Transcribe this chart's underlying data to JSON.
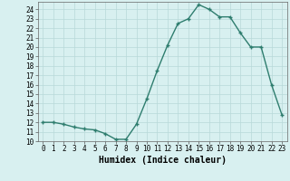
{
  "x": [
    0,
    1,
    2,
    3,
    4,
    5,
    6,
    7,
    8,
    9,
    10,
    11,
    12,
    13,
    14,
    15,
    16,
    17,
    18,
    19,
    20,
    21,
    22,
    23
  ],
  "y": [
    12,
    12,
    11.8,
    11.5,
    11.3,
    11.2,
    10.8,
    10.2,
    10.2,
    11.8,
    14.5,
    17.5,
    20.2,
    22.5,
    23,
    24.5,
    24,
    23.2,
    23.2,
    21.5,
    20,
    20,
    16,
    12.8
  ],
  "line_color": "#2e7d6e",
  "marker": "+",
  "marker_size": 3,
  "bg_color": "#d8f0f0",
  "grid_color": "#b8d8d8",
  "xlabel": "Humidex (Indice chaleur)",
  "xlim": [
    -0.5,
    23.5
  ],
  "ylim": [
    10,
    24.8
  ],
  "yticks": [
    10,
    11,
    12,
    13,
    14,
    15,
    16,
    17,
    18,
    19,
    20,
    21,
    22,
    23,
    24
  ],
  "xticks": [
    0,
    1,
    2,
    3,
    4,
    5,
    6,
    7,
    8,
    9,
    10,
    11,
    12,
    13,
    14,
    15,
    16,
    17,
    18,
    19,
    20,
    21,
    22,
    23
  ],
  "tick_label_fontsize": 5.5,
  "xlabel_fontsize": 7,
  "line_width": 1.0,
  "marker_size_plot": 3.5
}
